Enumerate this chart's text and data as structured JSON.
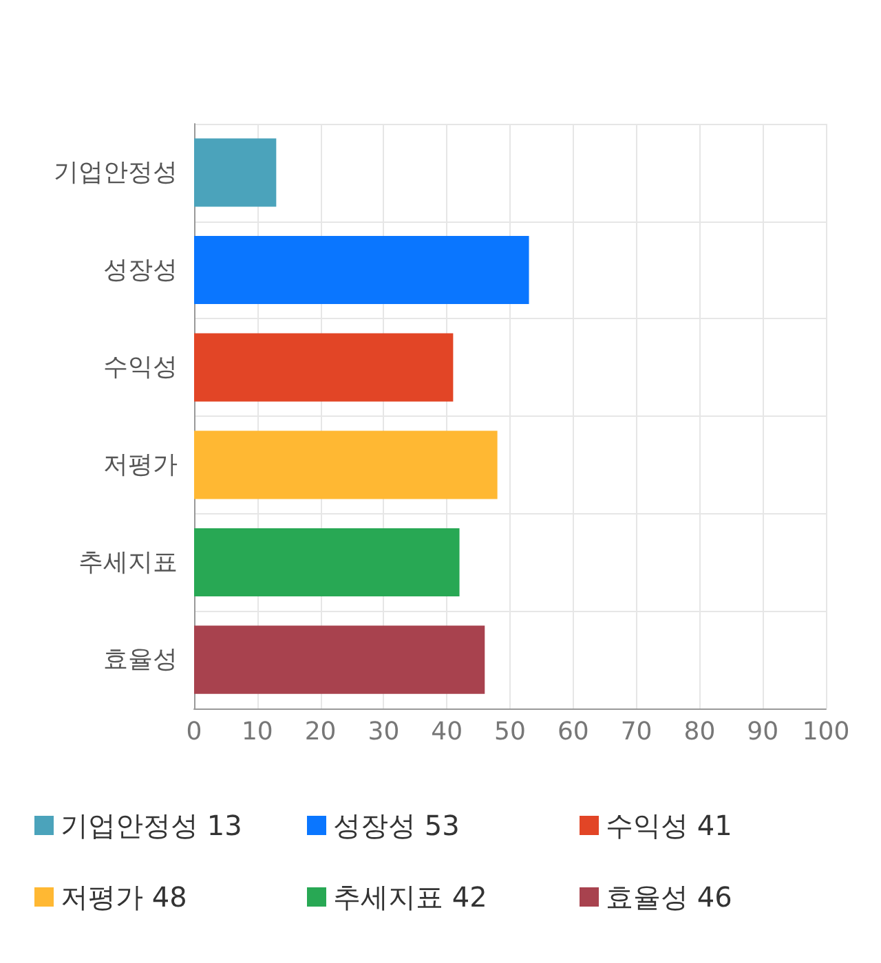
{
  "chart_data": {
    "type": "bar",
    "orientation": "horizontal",
    "stacked": true,
    "categories": [
      "기업안정성",
      "성장성",
      "수익성",
      "저평가",
      "추세지표",
      "효율성"
    ],
    "series": [
      {
        "name": "기업안정성 13",
        "color": "#4ba3bb",
        "values": [
          13,
          null,
          null,
          null,
          null,
          null
        ]
      },
      {
        "name": "성장성 53",
        "color": "#0a76ff",
        "values": [
          null,
          53,
          null,
          null,
          null,
          null
        ]
      },
      {
        "name": "수익성 41",
        "color": "#e24526",
        "values": [
          null,
          null,
          41,
          null,
          null,
          null
        ]
      },
      {
        "name": "저평가 48",
        "color": "#ffb833",
        "values": [
          null,
          null,
          null,
          48,
          null,
          null
        ]
      },
      {
        "name": "추세지표 42",
        "color": "#28a854",
        "values": [
          null,
          null,
          null,
          null,
          42,
          null
        ]
      },
      {
        "name": "효율성 46",
        "color": "#a8424e",
        "values": [
          null,
          null,
          null,
          null,
          null,
          46
        ]
      }
    ],
    "xlim": [
      0,
      100
    ],
    "xticks": [
      0,
      10,
      20,
      30,
      40,
      50,
      60,
      70,
      80,
      90,
      100
    ],
    "grid": true,
    "legend": "bottom"
  }
}
